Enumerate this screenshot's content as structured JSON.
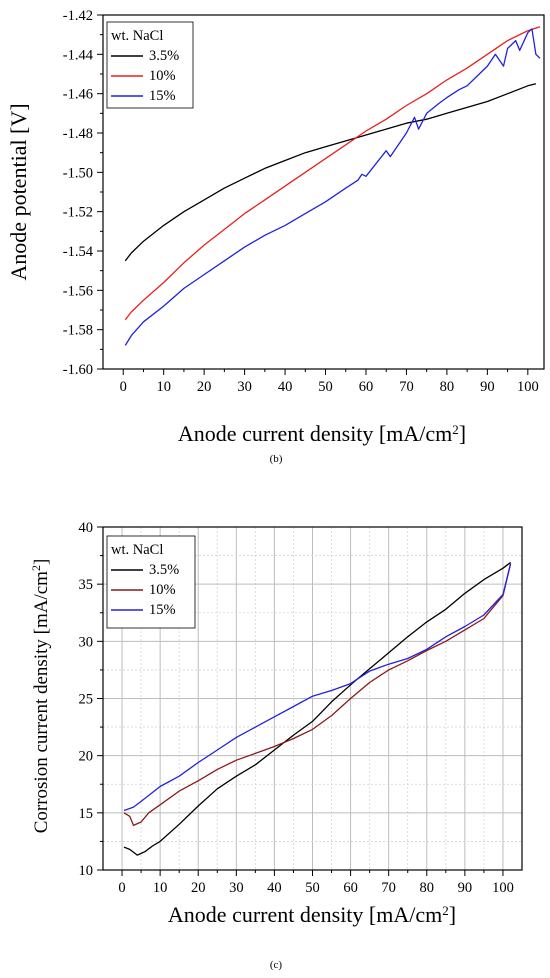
{
  "chart_data": [
    {
      "type": "line",
      "caption": "(b)",
      "xlabel": "Anode current density [mA/cm²]",
      "xlabel_main": "Anode current density [mA/cm",
      "xlabel_sup": "2",
      "xlabel_end": "]",
      "ylabel": "Anode potential [V]",
      "xlim": [
        -5,
        104
      ],
      "ylim": [
        -1.6,
        -1.42
      ],
      "xticks": [
        "0",
        "10",
        "20",
        "30",
        "40",
        "50",
        "60",
        "70",
        "80",
        "90",
        "100"
      ],
      "yticks": [
        "-1.60",
        "-1.58",
        "-1.56",
        "-1.54",
        "-1.52",
        "-1.50",
        "-1.48",
        "-1.46",
        "-1.44",
        "-1.42"
      ],
      "grid": false,
      "legend_title": "wt. NaCl",
      "legend_position": "top-left",
      "series": [
        {
          "name": "3.5%",
          "color": "#000000",
          "x": [
            0.5,
            2,
            5,
            10,
            15,
            20,
            25,
            30,
            35,
            40,
            45,
            50,
            55,
            60,
            65,
            70,
            75,
            80,
            85,
            90,
            95,
            100,
            102
          ],
          "y": [
            -1.545,
            -1.541,
            -1.535,
            -1.527,
            -1.52,
            -1.514,
            -1.508,
            -1.503,
            -1.498,
            -1.494,
            -1.49,
            -1.487,
            -1.484,
            -1.481,
            -1.478,
            -1.475,
            -1.473,
            -1.47,
            -1.467,
            -1.464,
            -1.46,
            -1.456,
            -1.455
          ]
        },
        {
          "name": "10%",
          "color": "#e8201e",
          "x": [
            0.5,
            2,
            5,
            10,
            15,
            20,
            25,
            30,
            35,
            40,
            45,
            50,
            55,
            60,
            65,
            70,
            75,
            80,
            85,
            90,
            95,
            100,
            103
          ],
          "y": [
            -1.575,
            -1.571,
            -1.565,
            -1.556,
            -1.546,
            -1.537,
            -1.529,
            -1.521,
            -1.514,
            -1.507,
            -1.5,
            -1.493,
            -1.486,
            -1.479,
            -1.473,
            -1.466,
            -1.46,
            -1.453,
            -1.447,
            -1.44,
            -1.433,
            -1.428,
            -1.426
          ]
        },
        {
          "name": "15%",
          "color": "#2222dd",
          "x": [
            0.5,
            2,
            5,
            10,
            15,
            20,
            25,
            30,
            35,
            40,
            45,
            50,
            55,
            58,
            59,
            60,
            65,
            66,
            70,
            72,
            73,
            75,
            78,
            80,
            83,
            85,
            88,
            90,
            92,
            94,
            95,
            97,
            98,
            100,
            101,
            102,
            103
          ],
          "y": [
            -1.588,
            -1.583,
            -1.576,
            -1.568,
            -1.559,
            -1.552,
            -1.545,
            -1.538,
            -1.532,
            -1.527,
            -1.521,
            -1.515,
            -1.508,
            -1.504,
            -1.501,
            -1.502,
            -1.489,
            -1.492,
            -1.48,
            -1.472,
            -1.478,
            -1.47,
            -1.465,
            -1.462,
            -1.458,
            -1.456,
            -1.45,
            -1.446,
            -1.44,
            -1.446,
            -1.437,
            -1.433,
            -1.438,
            -1.429,
            -1.427,
            -1.44,
            -1.442
          ]
        }
      ]
    },
    {
      "type": "line",
      "caption": "(c)",
      "xlabel": "Anode current density [mA/cm²]",
      "xlabel_main": "Anode current density [mA/cm",
      "xlabel_sup": "2",
      "xlabel_end": "]",
      "ylabel": "Corrosion current density [mA/cm²]",
      "ylabel_main": "Corrosion current density [mA/cm",
      "ylabel_sup": "2",
      "ylabel_end": "]",
      "xlim": [
        -5,
        105
      ],
      "ylim": [
        10,
        40
      ],
      "xticks": [
        "0",
        "10",
        "20",
        "30",
        "40",
        "50",
        "60",
        "70",
        "80",
        "90",
        "100"
      ],
      "yticks": [
        "10",
        "15",
        "20",
        "25",
        "30",
        "35",
        "40"
      ],
      "grid": true,
      "legend_title": "wt. NaCl",
      "legend_position": "top-left",
      "series": [
        {
          "name": "3.5%",
          "color": "#000000",
          "x": [
            0.5,
            2,
            4,
            6,
            8,
            10,
            15,
            20,
            25,
            30,
            35,
            40,
            45,
            50,
            55,
            60,
            65,
            70,
            75,
            80,
            85,
            90,
            95,
            100,
            102
          ],
          "y": [
            12,
            11.8,
            11.3,
            11.6,
            12.1,
            12.5,
            14,
            15.6,
            17.1,
            18.2,
            19.2,
            20.5,
            21.8,
            23,
            24.7,
            26.2,
            27.6,
            29,
            30.4,
            31.7,
            32.8,
            34.2,
            35.4,
            36.4,
            36.9
          ]
        },
        {
          "name": "10%",
          "color": "#8b1a1a",
          "x": [
            0.5,
            2,
            3,
            5,
            7,
            10,
            15,
            20,
            25,
            30,
            35,
            40,
            45,
            50,
            55,
            60,
            65,
            70,
            75,
            80,
            85,
            90,
            95,
            100,
            102
          ],
          "y": [
            15,
            14.7,
            13.9,
            14.2,
            15,
            15.7,
            16.9,
            17.8,
            18.8,
            19.6,
            20.2,
            20.8,
            21.5,
            22.3,
            23.5,
            25,
            26.4,
            27.5,
            28.3,
            29.2,
            30,
            31,
            32,
            34,
            36.8
          ]
        },
        {
          "name": "15%",
          "color": "#2222dd",
          "x": [
            0.5,
            3,
            5,
            10,
            15,
            20,
            25,
            30,
            35,
            40,
            45,
            50,
            55,
            60,
            65,
            70,
            75,
            80,
            85,
            90,
            95,
            100,
            102
          ],
          "y": [
            15.2,
            15.5,
            16,
            17.3,
            18.2,
            19.4,
            20.5,
            21.6,
            22.5,
            23.4,
            24.3,
            25.2,
            25.7,
            26.3,
            27.4,
            28,
            28.5,
            29.3,
            30.4,
            31.3,
            32.3,
            34.1,
            36.8
          ]
        }
      ]
    }
  ]
}
